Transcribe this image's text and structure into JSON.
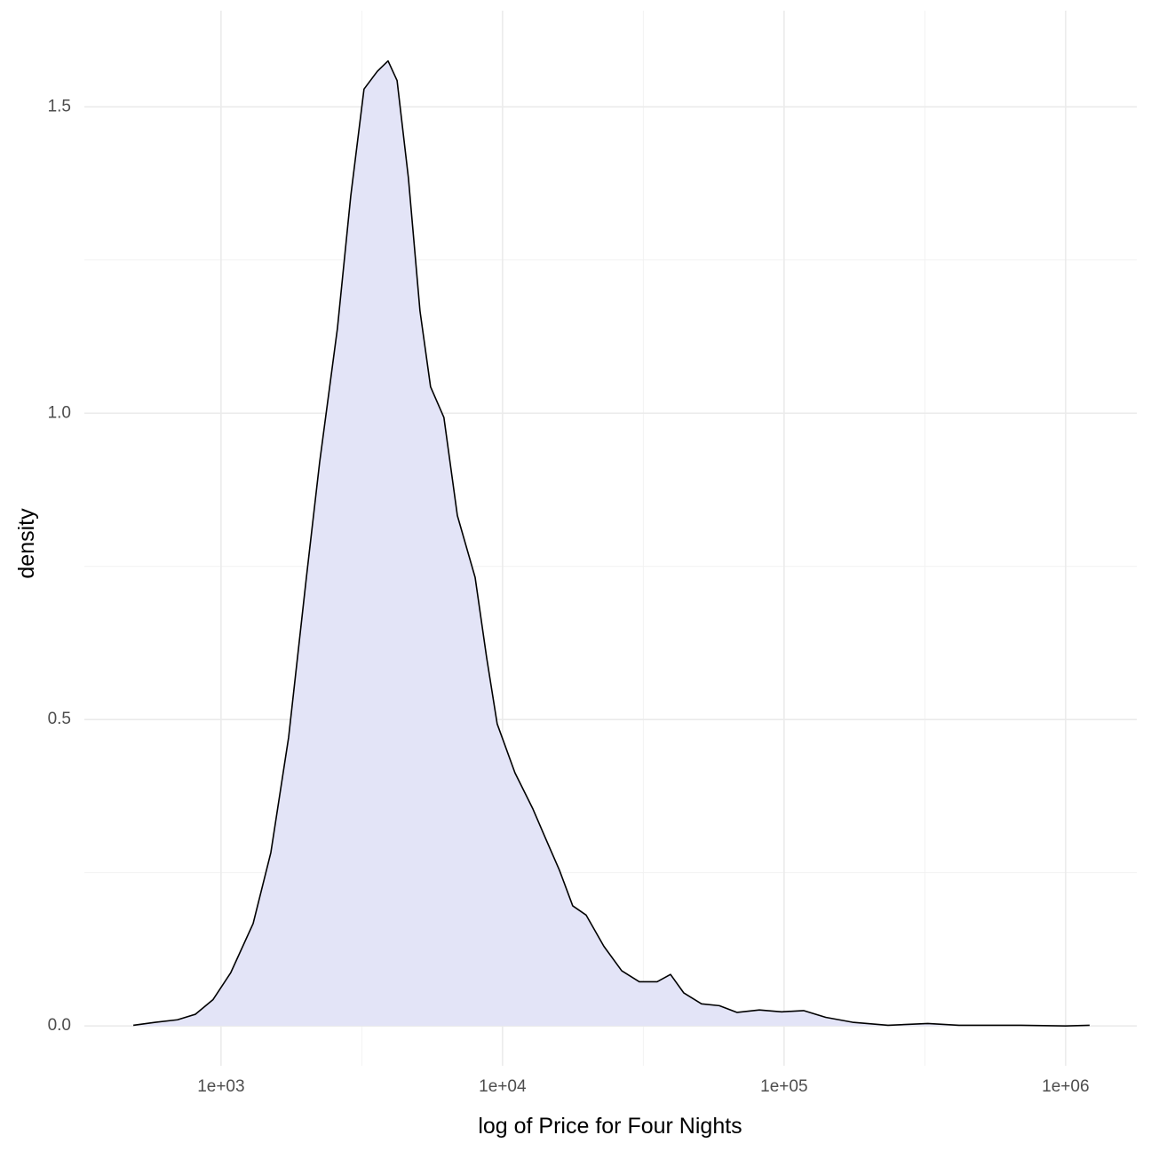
{
  "chart_data": {
    "type": "density",
    "x_label": "log of Price for Four Nights",
    "y_label": "density",
    "x_log": true,
    "grid": true,
    "fill": "#e3e4f7",
    "color": "#000000",
    "xlim": [
      327,
      1790000
    ],
    "ylim": [
      -0.065,
      1.657
    ],
    "xticks": [
      {
        "value": 1000,
        "label": "1e+03"
      },
      {
        "value": 10000,
        "label": "1e+04"
      },
      {
        "value": 100000,
        "label": "1e+05"
      },
      {
        "value": 1000000,
        "label": "1e+06"
      }
    ],
    "x_minor_grid": [
      3162,
      31623,
      316228
    ],
    "yticks": [
      {
        "value": 0,
        "label": "0.0"
      },
      0.5,
      {
        "value": 1,
        "label": "1.0"
      },
      1.5
    ],
    "y_minor_grid": [
      0.25,
      0.75,
      1.25
    ],
    "x": [
      488,
      585,
      700,
      811,
      937,
      1083,
      1300,
      1503,
      1738,
      2010,
      2240,
      2590,
      2890,
      3220,
      3590,
      3920,
      4220,
      4630,
      5090,
      5550,
      6190,
      6910,
      7990,
      8780,
      9570,
      11070,
      12790,
      14280,
      15930,
      17750,
      19800,
      22900,
      26500,
      30600,
      35400,
      39500,
      44000,
      50900,
      58900,
      68100,
      81700,
      98000,
      117300,
      140600,
      175000,
      234000,
      324000,
      418000,
      695000,
      1000000,
      1217000
    ],
    "values": [
      0.001,
      0.006,
      0.01,
      0.019,
      0.043,
      0.087,
      0.167,
      0.283,
      0.471,
      0.732,
      0.92,
      1.138,
      1.355,
      1.529,
      1.558,
      1.575,
      1.543,
      1.384,
      1.167,
      1.043,
      0.993,
      0.833,
      0.732,
      0.601,
      0.493,
      0.413,
      0.355,
      0.304,
      0.254,
      0.196,
      0.181,
      0.13,
      0.09,
      0.072,
      0.072,
      0.084,
      0.054,
      0.036,
      0.033,
      0.022,
      0.026,
      0.023,
      0.025,
      0.014,
      0.006,
      0.001,
      0.004,
      0.001,
      0.001,
      0,
      0.001
    ]
  }
}
